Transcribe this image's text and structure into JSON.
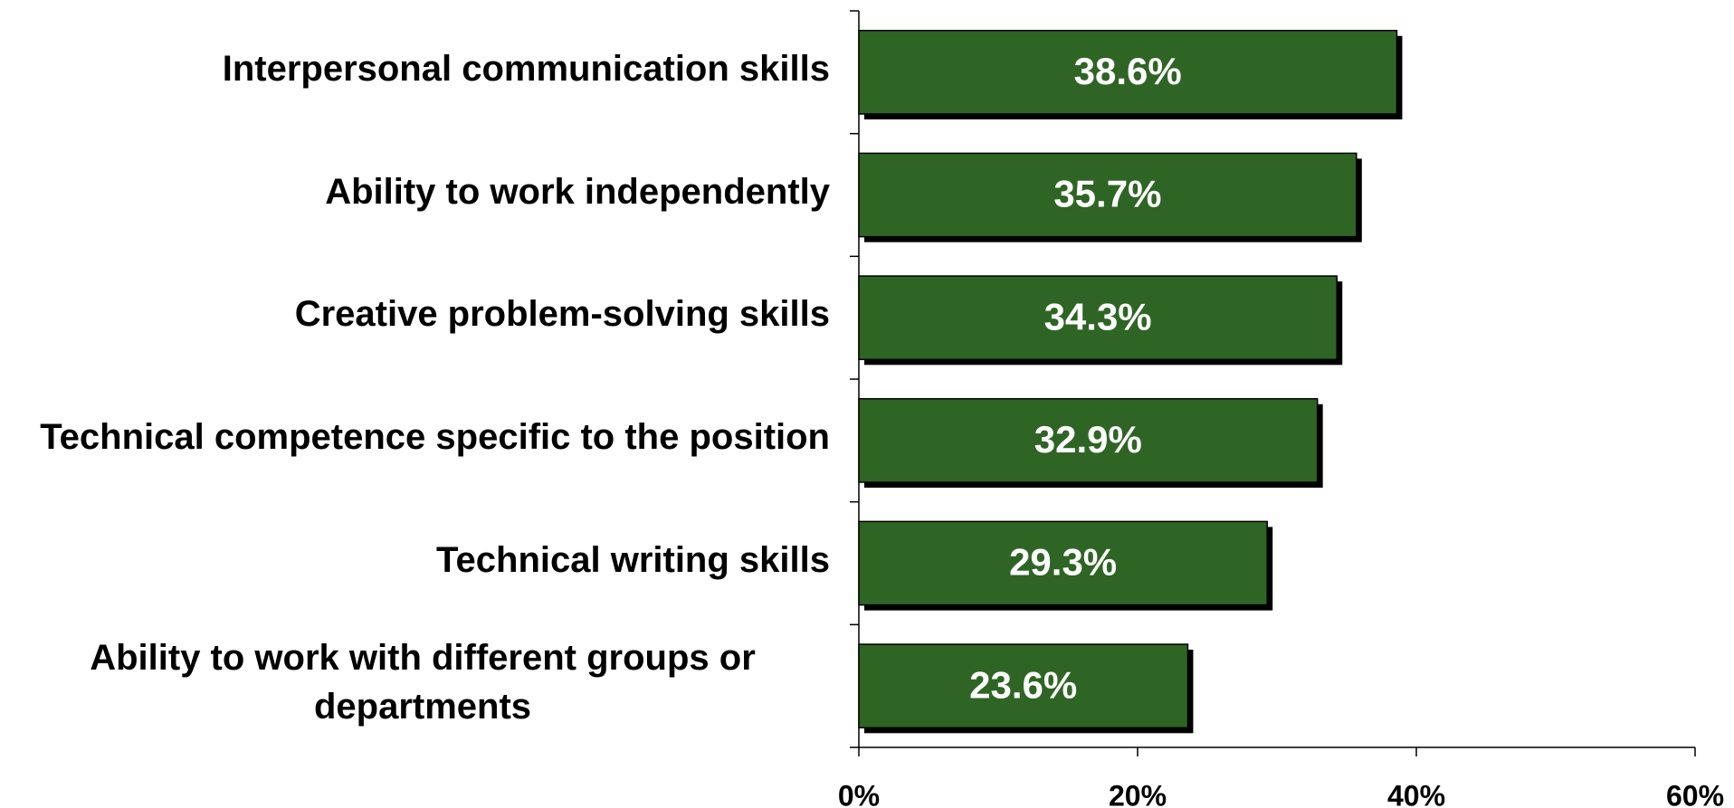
{
  "chart_data": {
    "type": "bar",
    "orientation": "horizontal",
    "categories": [
      "Interpersonal communication skills",
      "Ability to work independently",
      "Creative problem-solving skills",
      "Technical competence specific to the position",
      "Technical writing skills",
      "Ability to work with different groups or departments"
    ],
    "values": [
      38.6,
      35.7,
      34.3,
      32.9,
      29.3,
      23.6
    ],
    "value_labels": [
      "38.6%",
      "35.7%",
      "34.3%",
      "32.9%",
      "29.3%",
      "23.6%"
    ],
    "color": "#2e6524",
    "xlim": [
      0,
      60
    ],
    "xticks": [
      {
        "value": 0,
        "label": "0%"
      },
      {
        "value": 20,
        "label": "20%"
      },
      {
        "value": 40,
        "label": "40%"
      },
      {
        "value": 60,
        "label": "60%"
      }
    ]
  }
}
